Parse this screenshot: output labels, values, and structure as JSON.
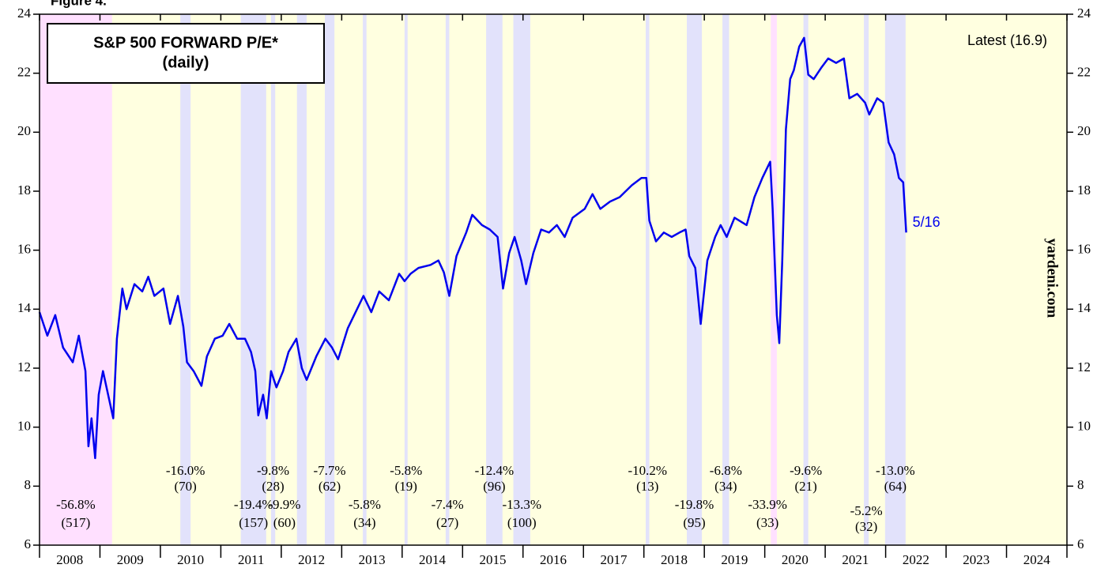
{
  "chart_data": {
    "type": "line",
    "figure_label": "Figure 4.",
    "title": "S&P 500 FORWARD P/E*",
    "subtitle": "(daily)",
    "latest_note": "Latest (16.9)",
    "end_label": "5/16",
    "source": "yardeni.com",
    "xlim": [
      2008,
      2025
    ],
    "xticks": [
      2008,
      2009,
      2010,
      2011,
      2012,
      2013,
      2014,
      2015,
      2016,
      2017,
      2018,
      2019,
      2020,
      2021,
      2022,
      2023,
      2024,
      2025
    ],
    "x_labels": [
      "2008",
      "2009",
      "2010",
      "2011",
      "2012",
      "2013",
      "2014",
      "2015",
      "2016",
      "2017",
      "2018",
      "2019",
      "2020",
      "2021",
      "2022",
      "2023",
      "2024"
    ],
    "ylim": [
      6,
      24
    ],
    "yticks": [
      6,
      8,
      10,
      12,
      14,
      16,
      18,
      20,
      22,
      24
    ],
    "background": "#ffffe0",
    "bands": [
      {
        "start": 2008.0,
        "end": 2009.2,
        "color": "#ffe0ff",
        "label": "-56.8%",
        "days": "(517)"
      },
      {
        "start": 2010.33,
        "end": 2010.5,
        "color": "#e2e2fb",
        "label": "-16.0%",
        "days": "(70)"
      },
      {
        "start": 2011.33,
        "end": 2011.75,
        "color": "#e2e2fb",
        "label": "-19.4%",
        "days": "(157)"
      },
      {
        "start": 2011.83,
        "end": 2011.9,
        "color": "#e2e2fb",
        "label": "-9.8%",
        "days": "(28)"
      },
      {
        "start": 2012.26,
        "end": 2012.42,
        "color": "#e2e2fb",
        "label": "-9.9%",
        "days": "(60)"
      },
      {
        "start": 2012.72,
        "end": 2012.88,
        "color": "#e2e2fb",
        "label": "-7.7%",
        "days": "(62)"
      },
      {
        "start": 2013.35,
        "end": 2013.41,
        "color": "#e2e2fb",
        "label": "-5.8%",
        "days": "(34)"
      },
      {
        "start": 2014.04,
        "end": 2014.09,
        "color": "#e2e2fb",
        "label": "-5.8%",
        "days": "(19)"
      },
      {
        "start": 2014.72,
        "end": 2014.78,
        "color": "#e2e2fb",
        "label": "-7.4%",
        "days": "(27)"
      },
      {
        "start": 2015.39,
        "end": 2015.66,
        "color": "#e2e2fb",
        "label": "-12.4%",
        "days": "(96)"
      },
      {
        "start": 2015.84,
        "end": 2016.12,
        "color": "#e2e2fb",
        "label": "-13.3%",
        "days": "(100)"
      },
      {
        "start": 2018.03,
        "end": 2018.09,
        "color": "#e2e2fb",
        "label": "-10.2%",
        "days": "(13)"
      },
      {
        "start": 2018.71,
        "end": 2018.96,
        "color": "#e2e2fb",
        "label": "-19.8%",
        "days": "(95)"
      },
      {
        "start": 2019.3,
        "end": 2019.41,
        "color": "#e2e2fb",
        "label": "-6.8%",
        "days": "(34)"
      },
      {
        "start": 2020.1,
        "end": 2020.2,
        "color": "#ffe0ff",
        "label": "-33.9%",
        "days": "(33)"
      },
      {
        "start": 2020.64,
        "end": 2020.72,
        "color": "#e2e2fb",
        "label": "-9.6%",
        "days": "(21)"
      },
      {
        "start": 2021.64,
        "end": 2021.72,
        "color": "#e2e2fb",
        "label": "-5.2%",
        "days": "(32)"
      },
      {
        "start": 2021.99,
        "end": 2022.33,
        "color": "#e2e2fb",
        "label": "-13.0%",
        "days": "(64)"
      }
    ],
    "series": [
      {
        "color": "#0000ee",
        "x": [
          2008.0,
          2008.13,
          2008.26,
          2008.39,
          2008.55,
          2008.65,
          2008.76,
          2008.81,
          2008.86,
          2008.92,
          2008.98,
          2009.05,
          2009.22,
          2009.28,
          2009.37,
          2009.44,
          2009.57,
          2009.7,
          2009.8,
          2009.9,
          2010.05,
          2010.16,
          2010.29,
          2010.38,
          2010.44,
          2010.55,
          2010.68,
          2010.77,
          2010.9,
          2011.03,
          2011.14,
          2011.27,
          2011.4,
          2011.5,
          2011.57,
          2011.62,
          2011.7,
          2011.76,
          2011.83,
          2011.92,
          2012.03,
          2012.12,
          2012.25,
          2012.34,
          2012.42,
          2012.58,
          2012.73,
          2012.84,
          2012.94,
          2013.1,
          2013.36,
          2013.49,
          2013.62,
          2013.78,
          2013.95,
          2014.04,
          2014.14,
          2014.27,
          2014.47,
          2014.6,
          2014.69,
          2014.78,
          2014.9,
          2015.06,
          2015.16,
          2015.32,
          2015.45,
          2015.58,
          2015.67,
          2015.77,
          2015.86,
          2015.97,
          2016.05,
          2016.17,
          2016.3,
          2016.43,
          2016.56,
          2016.69,
          2016.82,
          2017.02,
          2017.15,
          2017.28,
          2017.44,
          2017.6,
          2017.8,
          2017.96,
          2018.04,
          2018.09,
          2018.2,
          2018.33,
          2018.46,
          2018.59,
          2018.69,
          2018.75,
          2018.85,
          2018.94,
          2019.05,
          2019.18,
          2019.27,
          2019.37,
          2019.5,
          2019.7,
          2019.83,
          2019.96,
          2020.09,
          2020.13,
          2020.2,
          2020.24,
          2020.29,
          2020.35,
          2020.42,
          2020.48,
          2020.57,
          2020.65,
          2020.72,
          2020.81,
          2020.94,
          2021.05,
          2021.18,
          2021.31,
          2021.4,
          2021.53,
          2021.66,
          2021.73,
          2021.86,
          2021.96,
          2022.05,
          2022.14,
          2022.22,
          2022.29,
          2022.34
        ],
        "values": [
          13.9,
          13.1,
          13.8,
          12.7,
          12.2,
          13.1,
          11.9,
          9.35,
          10.3,
          8.95,
          11.1,
          11.9,
          10.3,
          13.0,
          14.7,
          14.0,
          14.85,
          14.6,
          15.1,
          14.45,
          14.7,
          13.5,
          14.45,
          13.4,
          12.2,
          11.9,
          11.4,
          12.4,
          13.0,
          13.1,
          13.5,
          13.0,
          13.0,
          12.55,
          11.9,
          10.4,
          11.1,
          10.3,
          11.9,
          11.35,
          11.9,
          12.55,
          13.0,
          12.0,
          11.6,
          12.4,
          13.0,
          12.7,
          12.3,
          13.35,
          14.45,
          13.9,
          14.6,
          14.3,
          15.2,
          14.95,
          15.2,
          15.4,
          15.5,
          15.65,
          15.25,
          14.45,
          15.8,
          16.6,
          17.2,
          16.85,
          16.7,
          16.45,
          14.7,
          15.9,
          16.45,
          15.65,
          14.85,
          15.9,
          16.7,
          16.6,
          16.85,
          16.45,
          17.1,
          17.4,
          17.9,
          17.4,
          17.65,
          17.8,
          18.2,
          18.45,
          18.45,
          17.0,
          16.3,
          16.6,
          16.45,
          16.6,
          16.7,
          15.8,
          15.4,
          13.5,
          15.65,
          16.45,
          16.85,
          16.45,
          17.1,
          16.85,
          17.8,
          18.45,
          19.0,
          17.4,
          13.8,
          12.85,
          15.65,
          20.1,
          21.8,
          22.1,
          22.9,
          23.2,
          21.95,
          21.8,
          22.2,
          22.5,
          22.35,
          22.5,
          21.15,
          21.3,
          21.0,
          20.6,
          21.15,
          21.0,
          19.65,
          19.25,
          18.45,
          18.3,
          16.6
        ]
      }
    ]
  }
}
